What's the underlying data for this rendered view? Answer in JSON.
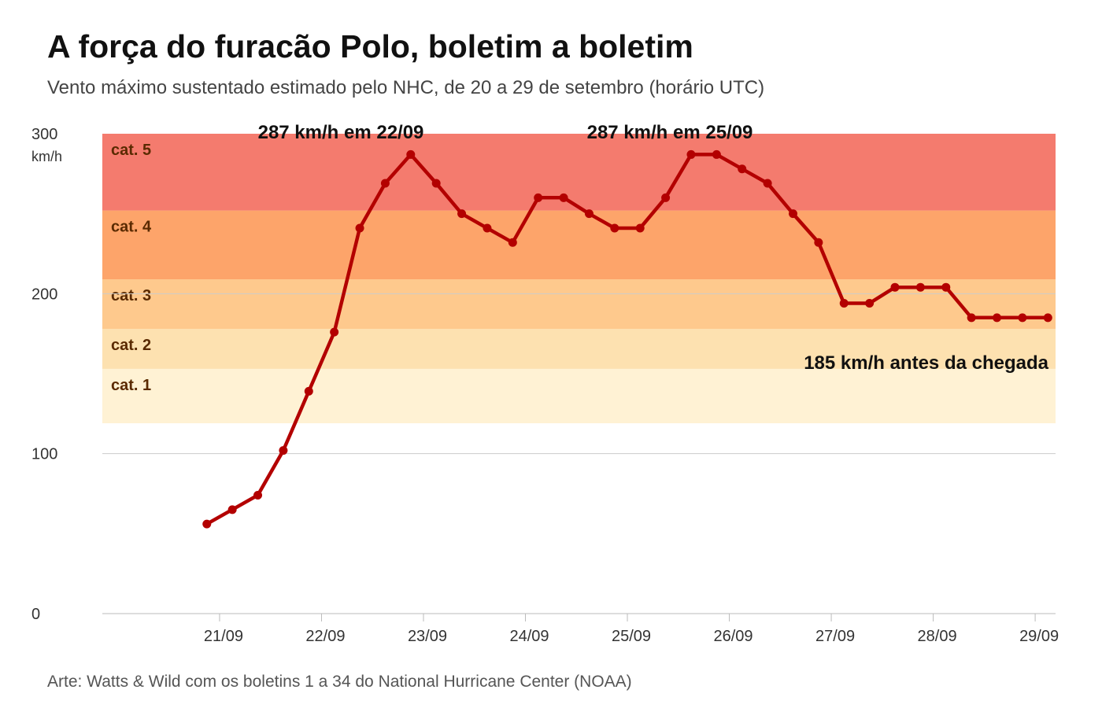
{
  "title": "A força do furacão Polo, boletim a boletim",
  "subtitle": "Vento máximo sustentado estimado pelo NHC, de 20 a 29 de setembro (horário UTC)",
  "source": "Arte: Watts & Wild com os boletins 1 a 34 do National Hurricane Center (NOAA)",
  "colors": {
    "line": "#b30000",
    "cat5": "#f47b6e",
    "cat4": "#fda46a",
    "cat3": "#fec98d",
    "cat2": "#fde1b0",
    "cat1": "#fff2d4",
    "gridline": "#cccccc"
  },
  "chart_data": {
    "type": "line",
    "ylim": [
      0,
      300
    ],
    "yunit": "km/h",
    "yticks": [
      "0",
      "100",
      "200",
      "300"
    ],
    "xtick_labels": [
      "21/09",
      "22/09",
      "23/09",
      "24/09",
      "25/09",
      "26/09",
      "27/09",
      "28/09",
      "29/09"
    ],
    "xlim_days": [
      19.85,
      29.2
    ],
    "grid": "horizontal at 100 and 200",
    "categories": [
      {
        "label": "cat. 1",
        "min": 119,
        "max": 153
      },
      {
        "label": "cat. 2",
        "min": 153,
        "max": 178
      },
      {
        "label": "cat. 3",
        "min": 178,
        "max": 209
      },
      {
        "label": "cat. 4",
        "min": 209,
        "max": 252
      },
      {
        "label": "cat. 5",
        "min": 252,
        "max": 300
      }
    ],
    "series": [
      {
        "x": [
          "20/09 21:00",
          "21/09 03:00",
          "21/09 09:00",
          "21/09 15:00",
          "21/09 21:00",
          "22/09 03:00",
          "22/09 09:00",
          "22/09 15:00",
          "22/09 21:00",
          "23/09 03:00",
          "23/09 09:00",
          "23/09 15:00",
          "23/09 21:00",
          "24/09 03:00",
          "24/09 09:00",
          "24/09 15:00",
          "24/09 21:00",
          "25/09 03:00",
          "25/09 09:00",
          "25/09 15:00",
          "25/09 21:00",
          "26/09 03:00",
          "26/09 09:00",
          "26/09 15:00",
          "26/09 21:00",
          "27/09 03:00",
          "27/09 09:00",
          "27/09 15:00",
          "27/09 21:00",
          "28/09 03:00",
          "28/09 09:00",
          "28/09 15:00",
          "28/09 21:00",
          "29/09 03:00"
        ],
        "values": [
          56,
          65,
          74,
          102,
          139,
          176,
          241,
          269,
          287,
          269,
          250,
          241,
          232,
          260,
          260,
          250,
          241,
          241,
          260,
          287,
          287,
          278,
          269,
          250,
          232,
          194,
          194,
          204,
          204,
          204,
          185,
          185,
          185,
          185
        ]
      }
    ],
    "annotations": [
      {
        "text": "287 km/h em 22/09"
      },
      {
        "text": "287 km/h em 25/09"
      },
      {
        "text": "185 km/h antes da chegada"
      }
    ]
  }
}
